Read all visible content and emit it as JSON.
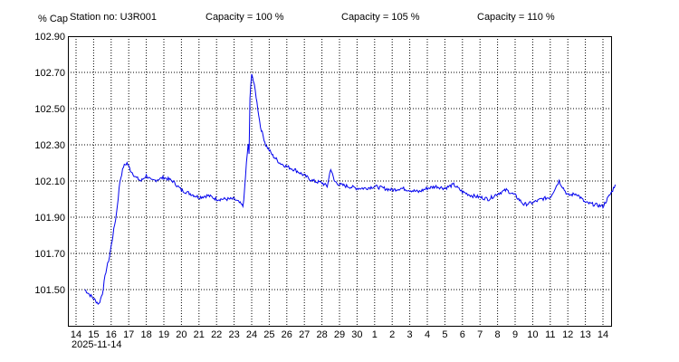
{
  "header": {
    "y_unit": "% Cap",
    "station": "Station no: U3R001",
    "capacity_100": "Capacity = 100 %",
    "capacity_105": "Capacity = 105 %",
    "capacity_110": "Capacity = 110 %"
  },
  "colors": {
    "series": "#0000ee",
    "capacity_100": "#008000",
    "capacity_105": "#ff0000",
    "capacity_110": "#000000",
    "grid": "#000000"
  },
  "chart_data": {
    "type": "line",
    "title": "",
    "xlabel": "",
    "ylabel": "% Cap",
    "start_date": "2025-11-14",
    "ylim": [
      101.3,
      102.9
    ],
    "y_ticks": [
      "102.90",
      "102.70",
      "102.50",
      "102.30",
      "102.10",
      "101.90",
      "101.70",
      "101.50"
    ],
    "x_ticks": [
      "14",
      "15",
      "16",
      "17",
      "18",
      "19",
      "20",
      "21",
      "22",
      "23",
      "24",
      "25",
      "26",
      "27",
      "28",
      "29",
      "30",
      "1",
      "2",
      "3",
      "4",
      "5",
      "6",
      "7",
      "8",
      "9",
      "10",
      "11",
      "12",
      "13",
      "14"
    ],
    "grid": true,
    "series": [
      {
        "x": [
          14.5,
          14.8,
          15.0,
          15.3,
          15.5,
          15.7,
          15.9,
          16.1,
          16.3,
          16.5,
          16.7,
          16.9,
          17.1,
          17.4,
          17.7,
          18.0,
          18.3,
          18.7,
          19.0,
          19.5,
          20.0,
          20.5,
          21.0,
          21.5,
          22.0,
          22.5,
          23.0,
          23.3,
          23.5,
          23.6,
          23.7,
          23.8,
          23.85,
          23.9,
          24.0,
          24.2,
          24.5,
          24.8,
          25.2,
          25.6,
          26.0,
          26.5,
          27.0,
          27.5,
          28.0,
          28.3,
          28.5,
          28.7,
          29.0,
          29.5,
          30.0,
          30.5,
          31.0,
          31.5,
          32.0,
          32.5,
          33.0,
          33.5,
          34.0,
          34.5,
          35.0,
          35.5,
          36.0,
          36.5,
          37.0,
          37.5,
          38.0,
          38.5,
          39.0,
          39.5,
          40.0,
          40.5,
          41.0,
          41.5,
          42.0,
          42.5,
          43.0,
          43.5,
          44.0,
          44.5,
          44.7
        ],
        "y": [
          101.5,
          101.47,
          101.45,
          101.42,
          101.48,
          101.6,
          101.68,
          101.8,
          101.92,
          102.1,
          102.18,
          102.2,
          102.16,
          102.12,
          102.1,
          102.13,
          102.1,
          102.11,
          102.12,
          102.1,
          102.05,
          102.03,
          102.01,
          102.02,
          102.0,
          102.0,
          102.0,
          101.98,
          101.96,
          102.05,
          102.2,
          102.3,
          102.25,
          102.55,
          102.7,
          102.6,
          102.4,
          102.3,
          102.24,
          102.2,
          102.18,
          102.16,
          102.13,
          102.1,
          102.09,
          102.07,
          102.17,
          102.1,
          102.08,
          102.07,
          102.06,
          102.06,
          102.07,
          102.06,
          102.05,
          102.06,
          102.05,
          102.04,
          102.06,
          102.07,
          102.06,
          102.08,
          102.04,
          102.02,
          102.01,
          102.0,
          102.03,
          102.05,
          102.02,
          101.97,
          101.98,
          102.0,
          102.01,
          102.1,
          102.02,
          102.03,
          101.98,
          101.97,
          101.96,
          102.04,
          102.08
        ]
      }
    ]
  }
}
